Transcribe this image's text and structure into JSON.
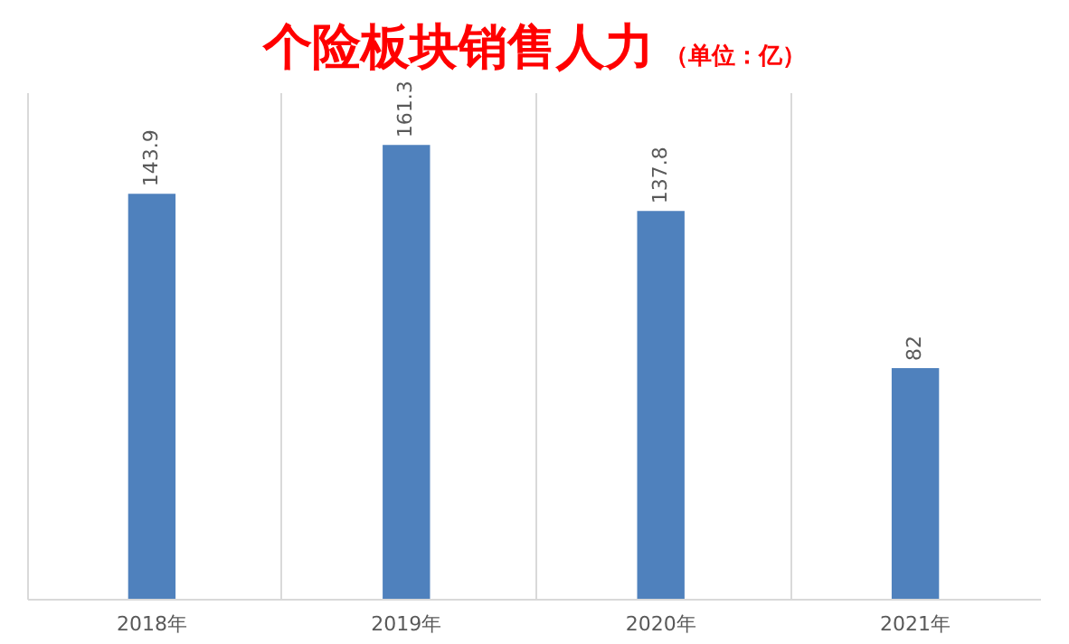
{
  "chart_data": {
    "type": "bar",
    "title": "个险板块销售人力",
    "subtitle": "（单位：亿）",
    "categories": [
      "2018年",
      "2019年",
      "2020年",
      "2021年"
    ],
    "values": [
      143.9,
      161.3,
      137.8,
      82
    ],
    "color": "#4f81bd",
    "data_labels": true,
    "grid": "x"
  }
}
